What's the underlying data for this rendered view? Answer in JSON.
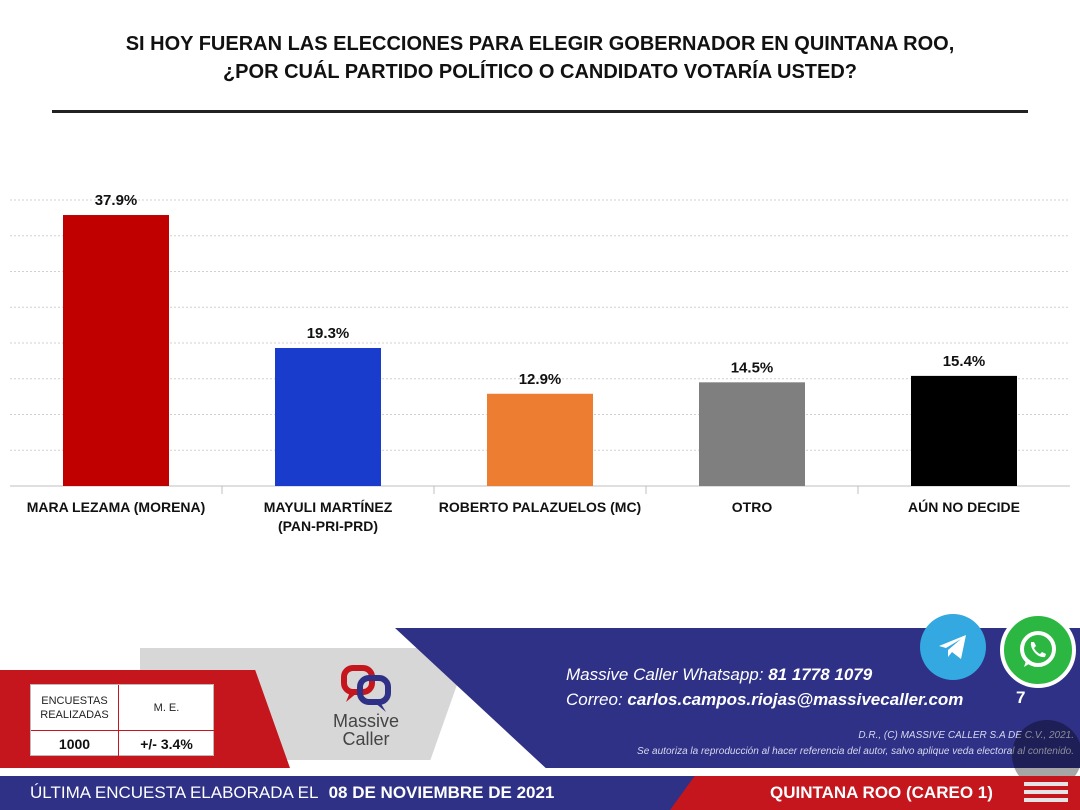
{
  "title": {
    "line1": "SI HOY FUERAN LAS ELECCIONES PARA ELEGIR GOBERNADOR EN QUINTANA ROO,",
    "line2": "¿POR CUÁL PARTIDO POLÍTICO O CANDIDATO VOTARÍA USTED?"
  },
  "chart_data": {
    "type": "bar",
    "categories": [
      [
        "MARA LEZAMA (MORENA)"
      ],
      [
        "MAYULI MARTÍNEZ",
        "(PAN-PRI-PRD)"
      ],
      [
        "ROBERTO PALAZUELOS (MC)"
      ],
      [
        "OTRO"
      ],
      [
        "AÚN NO DECIDE"
      ]
    ],
    "values": [
      37.9,
      19.3,
      12.9,
      14.5,
      15.4
    ],
    "value_labels": [
      "37.9%",
      "19.3%",
      "12.9%",
      "14.5%",
      "15.4%"
    ],
    "colors": [
      "#c00000",
      "#1a3ccc",
      "#ed7d31",
      "#7f7f7f",
      "#000000"
    ],
    "ylim": [
      0,
      40
    ],
    "grid": true
  },
  "stats": {
    "surveys_header": "ENCUESTAS REALIZADAS",
    "me_header": "M. E.",
    "surveys_value": "1000",
    "me_value": "+/- 3.4%"
  },
  "logo": {
    "name1": "Massive",
    "name2": "Caller"
  },
  "contact": {
    "whatsapp_label": "Massive Caller Whatsapp:",
    "whatsapp_value": "81 1778 1079",
    "email_label": "Correo:",
    "email_value": "carlos.campos.riojas@massivecaller.com"
  },
  "page_number": "7",
  "copyright": {
    "line1": "D.R., (C) MASSIVE CALLER S.A DE C.V., 2021.",
    "line2": "Se autoriza la reproducción al hacer referencia del autor, salvo aplique veda electoral al contenido."
  },
  "bottom": {
    "last_survey_label": "ÚLTIMA ENCUESTA ELABORADA EL",
    "date": "08 DE NOVIEMBRE DE 2021",
    "region": "QUINTANA ROO (CAREO 1)"
  },
  "icons": {
    "telegram": "telegram-icon",
    "whatsapp": "whatsapp-icon",
    "menu": "menu-icon"
  }
}
